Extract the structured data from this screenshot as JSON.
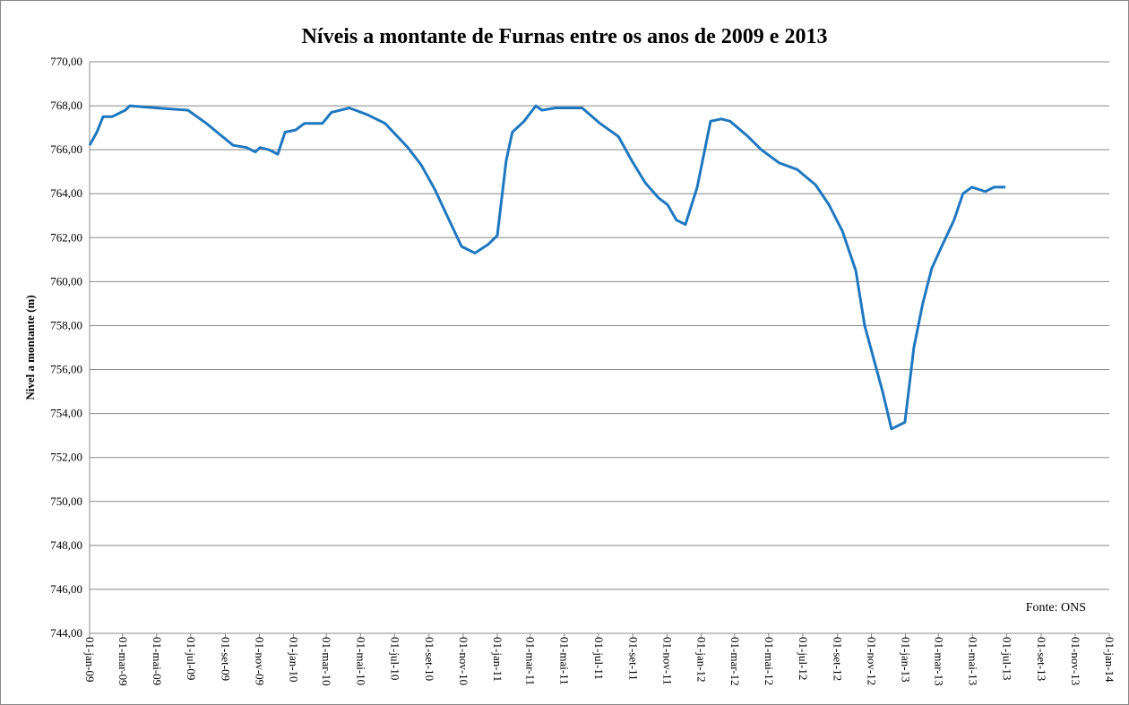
{
  "chart_data": {
    "type": "line",
    "title": "Níveis a montante de Furnas entre os anos de 2009 e 2013",
    "y_label": "Nivel a montante (m)",
    "annotation": "Fonte: ONS",
    "grid": true,
    "ylim": [
      744,
      770
    ],
    "yticks": [
      {
        "value": 744,
        "label": "744,00"
      },
      {
        "value": 746,
        "label": "746,00"
      },
      {
        "value": 748,
        "label": "748,00"
      },
      {
        "value": 750,
        "label": "750,00"
      },
      {
        "value": 752,
        "label": "752,00"
      },
      {
        "value": 754,
        "label": "754,00"
      },
      {
        "value": 756,
        "label": "756,00"
      },
      {
        "value": 758,
        "label": "758,00"
      },
      {
        "value": 760,
        "label": "760,00"
      },
      {
        "value": 762,
        "label": "762,00"
      },
      {
        "value": 764,
        "label": "764,00"
      },
      {
        "value": 766,
        "label": "766,00"
      },
      {
        "value": 768,
        "label": "768,00"
      },
      {
        "value": 770,
        "label": "770,00"
      }
    ],
    "xlim": [
      "2009-01-01",
      "2014-01-01"
    ],
    "xticks": [
      {
        "value": "2009-01-01",
        "label": "01-jan-09"
      },
      {
        "value": "2009-03-01",
        "label": "01-mar-09"
      },
      {
        "value": "2009-05-01",
        "label": "01-mai-09"
      },
      {
        "value": "2009-07-01",
        "label": "01-jul-09"
      },
      {
        "value": "2009-09-01",
        "label": "01-set-09"
      },
      {
        "value": "2009-11-01",
        "label": "01-nov-09"
      },
      {
        "value": "2010-01-01",
        "label": "01-jan-10"
      },
      {
        "value": "2010-03-01",
        "label": "01-mar-10"
      },
      {
        "value": "2010-05-01",
        "label": "01-mai-10"
      },
      {
        "value": "2010-07-01",
        "label": "01-jul-10"
      },
      {
        "value": "2010-09-01",
        "label": "01-set-10"
      },
      {
        "value": "2010-11-01",
        "label": "01-nov-10"
      },
      {
        "value": "2011-01-01",
        "label": "01-jan-11"
      },
      {
        "value": "2011-03-01",
        "label": "01-mar-11"
      },
      {
        "value": "2011-05-01",
        "label": "01-mai-11"
      },
      {
        "value": "2011-07-01",
        "label": "01-jul-11"
      },
      {
        "value": "2011-09-01",
        "label": "01-set-11"
      },
      {
        "value": "2011-11-01",
        "label": "01-nov-11"
      },
      {
        "value": "2012-01-01",
        "label": "01-jan-12"
      },
      {
        "value": "2012-03-01",
        "label": "01-mar-12"
      },
      {
        "value": "2012-05-01",
        "label": "01-mai-12"
      },
      {
        "value": "2012-07-01",
        "label": "01-jul-12"
      },
      {
        "value": "2012-09-01",
        "label": "01-set-12"
      },
      {
        "value": "2012-11-01",
        "label": "01-nov-12"
      },
      {
        "value": "2013-01-01",
        "label": "01-jan-13"
      },
      {
        "value": "2013-03-01",
        "label": "01-mar-13"
      },
      {
        "value": "2013-05-01",
        "label": "01-mai-13"
      },
      {
        "value": "2013-07-01",
        "label": "01-jul-13"
      },
      {
        "value": "2013-09-01",
        "label": "01-set-13"
      },
      {
        "value": "2013-11-01",
        "label": "01-nov-13"
      },
      {
        "value": "2014-01-01",
        "label": "01-jan-14"
      }
    ],
    "x": [
      "2009-01-01",
      "2009-01-14",
      "2009-01-25",
      "2009-02-10",
      "2009-03-06",
      "2009-03-14",
      "2009-05-01",
      "2009-06-26",
      "2009-07-29",
      "2009-08-22",
      "2009-09-15",
      "2009-10-09",
      "2009-10-25",
      "2009-11-02",
      "2009-11-18",
      "2009-12-04",
      "2009-12-17",
      "2010-01-05",
      "2010-01-21",
      "2010-02-22",
      "2010-03-10",
      "2010-04-11",
      "2010-05-13",
      "2010-06-14",
      "2010-07-25",
      "2010-08-18",
      "2010-09-11",
      "2010-10-05",
      "2010-10-29",
      "2010-11-22",
      "2010-12-16",
      "2011-01-01",
      "2011-01-17",
      "2011-01-28",
      "2011-02-18",
      "2011-03-11",
      "2011-03-22",
      "2011-04-15",
      "2011-06-02",
      "2011-07-04",
      "2011-08-06",
      "2011-08-30",
      "2011-09-23",
      "2011-10-17",
      "2011-11-02",
      "2011-11-18",
      "2011-12-04",
      "2011-12-25",
      "2012-01-18",
      "2012-02-06",
      "2012-02-22",
      "2012-03-25",
      "2012-04-18",
      "2012-05-20",
      "2012-06-21",
      "2012-07-24",
      "2012-08-17",
      "2012-09-10",
      "2012-10-04",
      "2012-10-20",
      "2012-11-05",
      "2012-11-21",
      "2012-12-07",
      "2012-12-31",
      "2013-01-16",
      "2013-02-01",
      "2013-02-17",
      "2013-03-05",
      "2013-03-29",
      "2013-04-14",
      "2013-04-30",
      "2013-05-24",
      "2013-06-09",
      "2013-06-29"
    ],
    "series": [
      {
        "name": "Nível",
        "color": "#1f77c0",
        "values": [
          766.2,
          766.8,
          767.5,
          767.5,
          767.8,
          768.0,
          767.9,
          767.8,
          767.2,
          766.7,
          766.2,
          766.1,
          765.9,
          766.1,
          766.0,
          765.8,
          766.8,
          766.9,
          767.2,
          767.2,
          767.7,
          767.9,
          767.6,
          767.2,
          766.1,
          765.3,
          764.2,
          762.9,
          761.6,
          761.3,
          761.7,
          762.1,
          765.5,
          766.8,
          767.3,
          768.0,
          767.8,
          767.9,
          767.9,
          767.2,
          766.6,
          765.5,
          764.5,
          763.8,
          763.5,
          762.8,
          762.6,
          764.3,
          767.3,
          767.4,
          767.3,
          766.6,
          766.0,
          765.4,
          765.1,
          764.4,
          763.5,
          762.3,
          760.5,
          758.0,
          756.5,
          755.0,
          753.3,
          753.6,
          757.0,
          759.0,
          760.6,
          761.5,
          762.8,
          764.0,
          764.3,
          764.1,
          764.3,
          764.3
        ]
      }
    ]
  }
}
